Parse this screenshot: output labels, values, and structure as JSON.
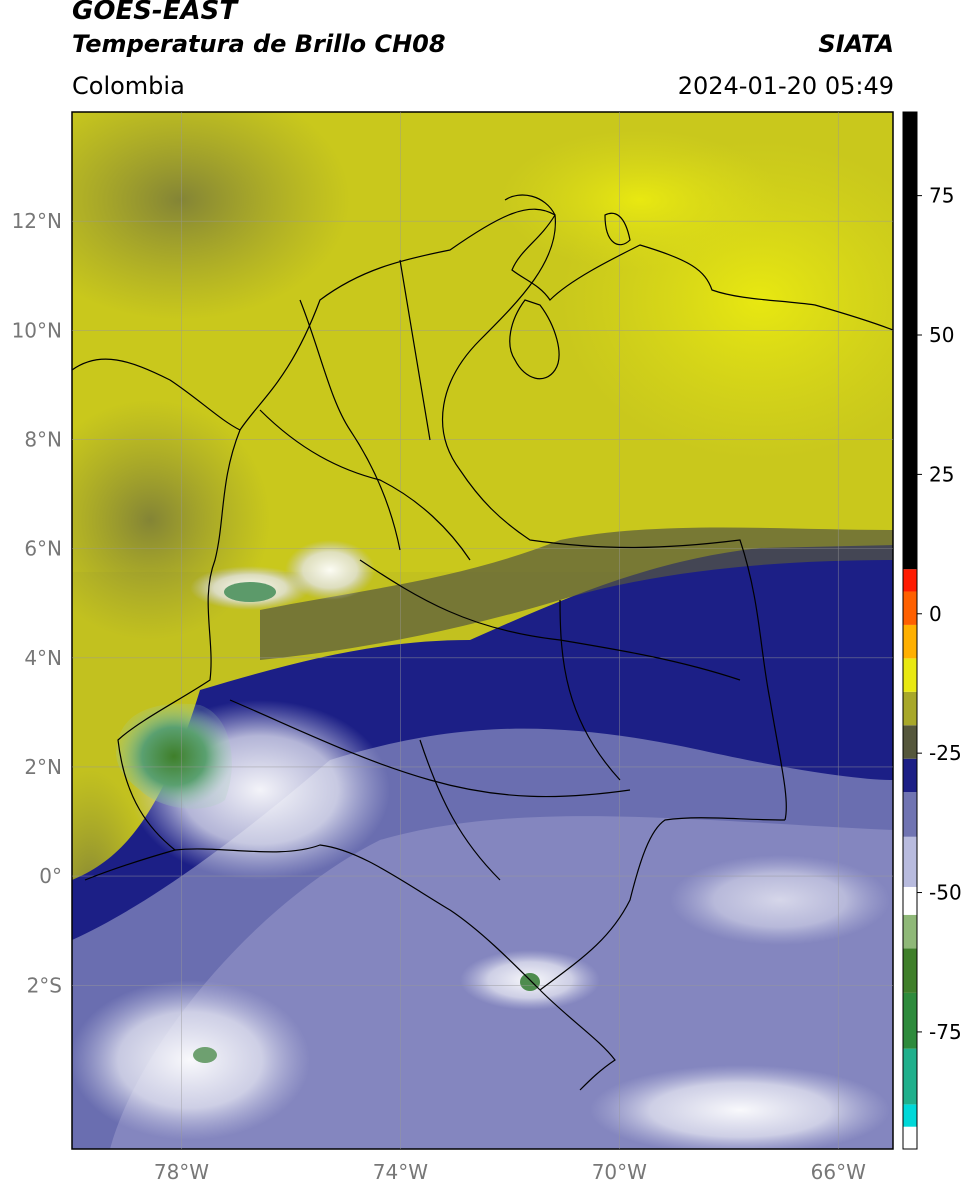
{
  "header": {
    "satellite": "GOES-EAST",
    "product": "Temperatura de Brillo CH08",
    "organization": "SIATA",
    "region": "Colombia",
    "datetime": "2024-01-20 05:49"
  },
  "map": {
    "lon_range": [
      -80,
      -65
    ],
    "lat_range": [
      -5,
      14
    ],
    "lat_ticks": [
      {
        "value": 12,
        "label": "12°N"
      },
      {
        "value": 10,
        "label": "10°N"
      },
      {
        "value": 8,
        "label": "8°N"
      },
      {
        "value": 6,
        "label": "6°N"
      },
      {
        "value": 4,
        "label": "4°N"
      },
      {
        "value": 2,
        "label": "2°N"
      },
      {
        "value": 0,
        "label": "0°"
      },
      {
        "value": -2,
        "label": "2°S"
      }
    ],
    "lon_ticks": [
      {
        "value": -78,
        "label": "78°W"
      },
      {
        "value": -74,
        "label": "74°W"
      },
      {
        "value": -70,
        "label": "70°W"
      },
      {
        "value": -66,
        "label": "66°W"
      }
    ]
  },
  "colorbar": {
    "range": [
      -96,
      90
    ],
    "ticks": [
      {
        "value": 75,
        "label": "75"
      },
      {
        "value": 50,
        "label": "50"
      },
      {
        "value": 25,
        "label": "25"
      },
      {
        "value": 0,
        "label": "0"
      },
      {
        "value": -25,
        "label": "-25"
      },
      {
        "value": -50,
        "label": "-50"
      },
      {
        "value": -75,
        "label": "-75"
      }
    ],
    "segments": [
      {
        "from": -96,
        "to": -92,
        "color": "#ffffff"
      },
      {
        "from": -92,
        "to": -88,
        "color": "#00d8d8"
      },
      {
        "from": -88,
        "to": -78,
        "color": "#20b08c"
      },
      {
        "from": -78,
        "to": -68,
        "color": "#2e8b3c"
      },
      {
        "from": -68,
        "to": -60,
        "color": "#3f7f2a"
      },
      {
        "from": -60,
        "to": -54,
        "color": "#8fb878"
      },
      {
        "from": -54,
        "to": -49,
        "color": "#ffffff"
      },
      {
        "from": -49,
        "to": -40,
        "color": "#b8bbde"
      },
      {
        "from": -40,
        "to": -32,
        "color": "#7074b2"
      },
      {
        "from": -32,
        "to": -26,
        "color": "#1c1f86"
      },
      {
        "from": -26,
        "to": -20,
        "color": "#55573c"
      },
      {
        "from": -20,
        "to": -14,
        "color": "#a8a82a"
      },
      {
        "from": -14,
        "to": -8,
        "color": "#e8e812"
      },
      {
        "from": -8,
        "to": -2,
        "color": "#ffb000"
      },
      {
        "from": -2,
        "to": 4,
        "color": "#ff6000"
      },
      {
        "from": 4,
        "to": 8,
        "color": "#ff1a00"
      },
      {
        "from": 8,
        "to": 90,
        "color": "#000000"
      }
    ]
  }
}
